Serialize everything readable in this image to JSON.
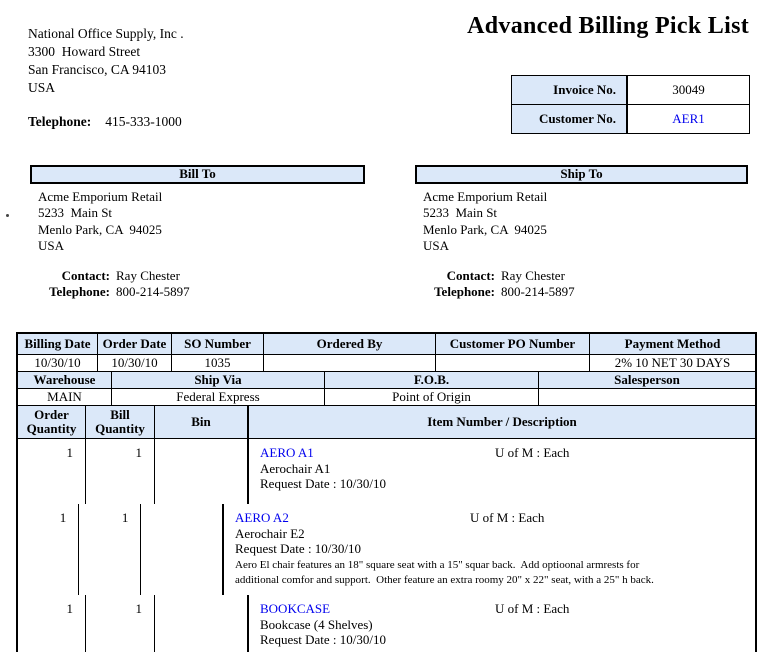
{
  "title": "Advanced Billing Pick List",
  "company": {
    "name": "National Office Supply, Inc .",
    "address_line1": "3300  Howard Street",
    "address_line2": "San Francisco, CA 94103",
    "address_line3": "USA",
    "telephone_label": "Telephone:",
    "telephone": "415-333-1000"
  },
  "invoice_box": {
    "invoice_label": "Invoice No.",
    "invoice_value": "30049",
    "customer_label": "Customer No.",
    "customer_value": "AER1"
  },
  "bill_to": {
    "header": "Bill To",
    "line1": "Acme Emporium Retail",
    "line2": "5233  Main St",
    "line3": "Menlo Park, CA  94025",
    "line4": "USA",
    "contact_label": "Contact:",
    "contact": "Ray Chester",
    "telephone_label": "Telephone:",
    "telephone": "800-214-5897"
  },
  "ship_to": {
    "header": "Ship To",
    "line1": "Acme Emporium Retail",
    "line2": "5233  Main St",
    "line3": "Menlo Park, CA  94025",
    "line4": "USA",
    "contact_label": "Contact:",
    "contact": "Ray Chester",
    "telephone_label": "Telephone:",
    "telephone": "800-214-5897"
  },
  "order_info": {
    "header_row1": [
      "Billing Date",
      "Order Date",
      "SO Number",
      "Ordered By",
      "Customer PO Number",
      "Payment Method"
    ],
    "value_row1": [
      "10/30/10",
      "10/30/10",
      "1035",
      "",
      "",
      "2% 10 NET 30 DAYS"
    ],
    "header_row2": [
      "Warehouse",
      "Ship Via",
      "F.O.B.",
      "Salesperson"
    ],
    "value_row2": [
      "MAIN",
      "Federal Express",
      "Point of Origin",
      ""
    ],
    "item_columns": [
      "Order\nQuantity",
      "Bill\nQuantity",
      "Bin",
      "Item Number / Description"
    ]
  },
  "items": [
    {
      "order_qty": "1",
      "bill_qty": "1",
      "bin": "",
      "item_number": "AERO A1",
      "uom": "U of M : Each",
      "description": "Aerochair A1",
      "request_date": "Request Date : 10/30/10",
      "long_description": ""
    },
    {
      "order_qty": "1",
      "bill_qty": "1",
      "bin": "",
      "item_number": "AERO A2",
      "uom": "U of M : Each",
      "description": "Aerochair E2",
      "request_date": "Request Date : 10/30/10",
      "long_description": "Aero El chair features an 18\" square seat with a 15\" squar back.  Add optioonal armrests for\nadditional comfor and support.  Other feature an extra roomy 20\" x 22\" seat, with a 25\" h back."
    },
    {
      "order_qty": "1",
      "bill_qty": "1",
      "bin": "",
      "item_number": "BOOKCASE",
      "uom": "U of M : Each",
      "description": "Bookcase (4 Shelves)",
      "request_date": "Request Date : 10/30/10",
      "long_description": ""
    }
  ],
  "colors": {
    "header_fill": "#dbe8f9",
    "border": "#000000",
    "link": "#0000ee"
  }
}
